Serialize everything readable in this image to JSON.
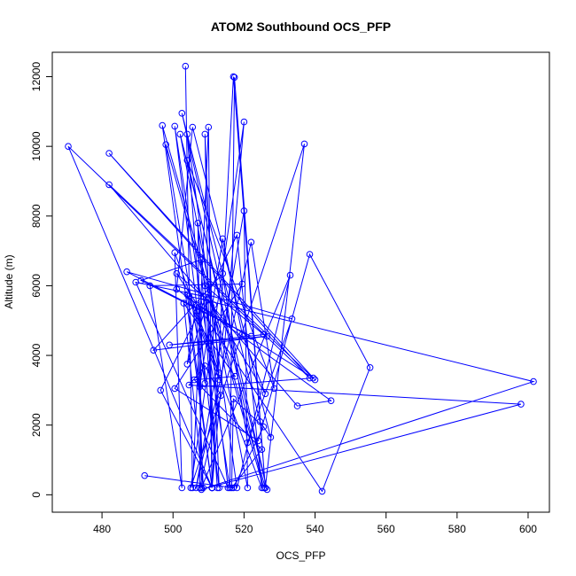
{
  "chart_data": {
    "type": "line",
    "title": "ATOM2 Southbound OCS_PFP",
    "xlabel": "OCS_PFP",
    "ylabel": "Altitude (m)",
    "xlim": [
      466,
      606
    ],
    "ylim": [
      -500,
      12700
    ],
    "xticks": [
      480,
      500,
      520,
      540,
      560,
      580,
      600
    ],
    "yticks": [
      0,
      2000,
      4000,
      6000,
      8000,
      10000,
      12000
    ],
    "grid": false,
    "legend": "none",
    "color": "#0000ff",
    "marker": "open-circle",
    "series": [
      {
        "points": [
          [
            503.5,
            12300
          ],
          [
            505.5,
            200
          ],
          [
            510,
            10550
          ],
          [
            511,
            200
          ],
          [
            517,
            12000
          ],
          [
            526,
            200
          ],
          [
            537,
            10070
          ],
          [
            505,
            200
          ],
          [
            520,
            10700
          ],
          [
            511,
            200
          ],
          [
            509,
            10350
          ],
          [
            513,
            200
          ],
          [
            500.5,
            10580
          ],
          [
            516,
            200
          ],
          [
            517.3,
            11980
          ],
          [
            526,
            200
          ],
          [
            497,
            10600
          ],
          [
            511,
            200
          ],
          [
            470.5,
            10000
          ],
          [
            538.5,
            3350
          ],
          [
            482,
            9800
          ],
          [
            540,
            3300
          ],
          [
            482,
            8900
          ],
          [
            535,
            2550
          ],
          [
            544.5,
            2700
          ],
          [
            501,
            5900
          ],
          [
            505.5,
            10550
          ],
          [
            527.5,
            1650
          ],
          [
            524.5,
            2100
          ],
          [
            502.5,
            10950
          ],
          [
            526.5,
            150
          ],
          [
            502,
            10350
          ],
          [
            521,
            200
          ],
          [
            520,
            8150
          ],
          [
            506.5,
            200
          ],
          [
            522,
            7250
          ],
          [
            528.5,
            3050
          ],
          [
            504,
            9600
          ],
          [
            525.5,
            200
          ],
          [
            498,
            10050
          ],
          [
            509,
            3200
          ],
          [
            504,
            10350
          ],
          [
            518,
            200
          ],
          [
            533,
            6300
          ],
          [
            508,
            200
          ],
          [
            507,
            7800
          ],
          [
            512.5,
            200
          ],
          [
            509,
            6000
          ],
          [
            525.5,
            4600
          ],
          [
            499,
            4300
          ],
          [
            526.5,
            4550
          ],
          [
            494.5,
            4150
          ],
          [
            514,
            6350
          ],
          [
            521,
            1500
          ],
          [
            533.5,
            5050
          ],
          [
            487,
            6400
          ],
          [
            522,
            4550
          ],
          [
            491,
            6150
          ],
          [
            508,
            6750
          ],
          [
            515.5,
            200
          ],
          [
            489.5,
            6100
          ],
          [
            508.5,
            5700
          ],
          [
            513,
            3500
          ],
          [
            500.5,
            6950
          ],
          [
            502.5,
            200
          ],
          [
            493.5,
            6000
          ],
          [
            519.5,
            6050
          ],
          [
            500.5,
            3050
          ],
          [
            524,
            1550
          ],
          [
            538.5,
            6900
          ],
          [
            555.5,
            3650
          ],
          [
            542,
            100
          ],
          [
            501,
            6350
          ],
          [
            511.5,
            5450
          ],
          [
            513,
            3300
          ],
          [
            504,
            5750
          ],
          [
            511,
            200
          ],
          [
            496.5,
            3000
          ],
          [
            518,
            7450
          ],
          [
            525,
            200
          ],
          [
            504.5,
            5700
          ],
          [
            601.5,
            3250
          ],
          [
            508,
            150
          ],
          [
            598,
            2600
          ],
          [
            504.5,
            3150
          ],
          [
            509,
            3700
          ],
          [
            513.5,
            2850
          ],
          [
            507.5,
            200
          ],
          [
            508,
            5400
          ],
          [
            539.5,
            3350
          ],
          [
            507.5,
            3100
          ],
          [
            514,
            7350
          ],
          [
            519.5,
            4600
          ],
          [
            526,
            2900
          ],
          [
            510,
            5600
          ],
          [
            504,
            3750
          ],
          [
            506.5,
            5450
          ],
          [
            508.5,
            200
          ],
          [
            503,
            5500
          ],
          [
            517.5,
            3400
          ],
          [
            506,
            3300
          ],
          [
            525,
            1300
          ],
          [
            516.5,
            200
          ],
          [
            517,
            2750
          ],
          [
            525.5,
            1950
          ],
          [
            517,
            200
          ],
          [
            492,
            550
          ]
        ]
      }
    ]
  }
}
